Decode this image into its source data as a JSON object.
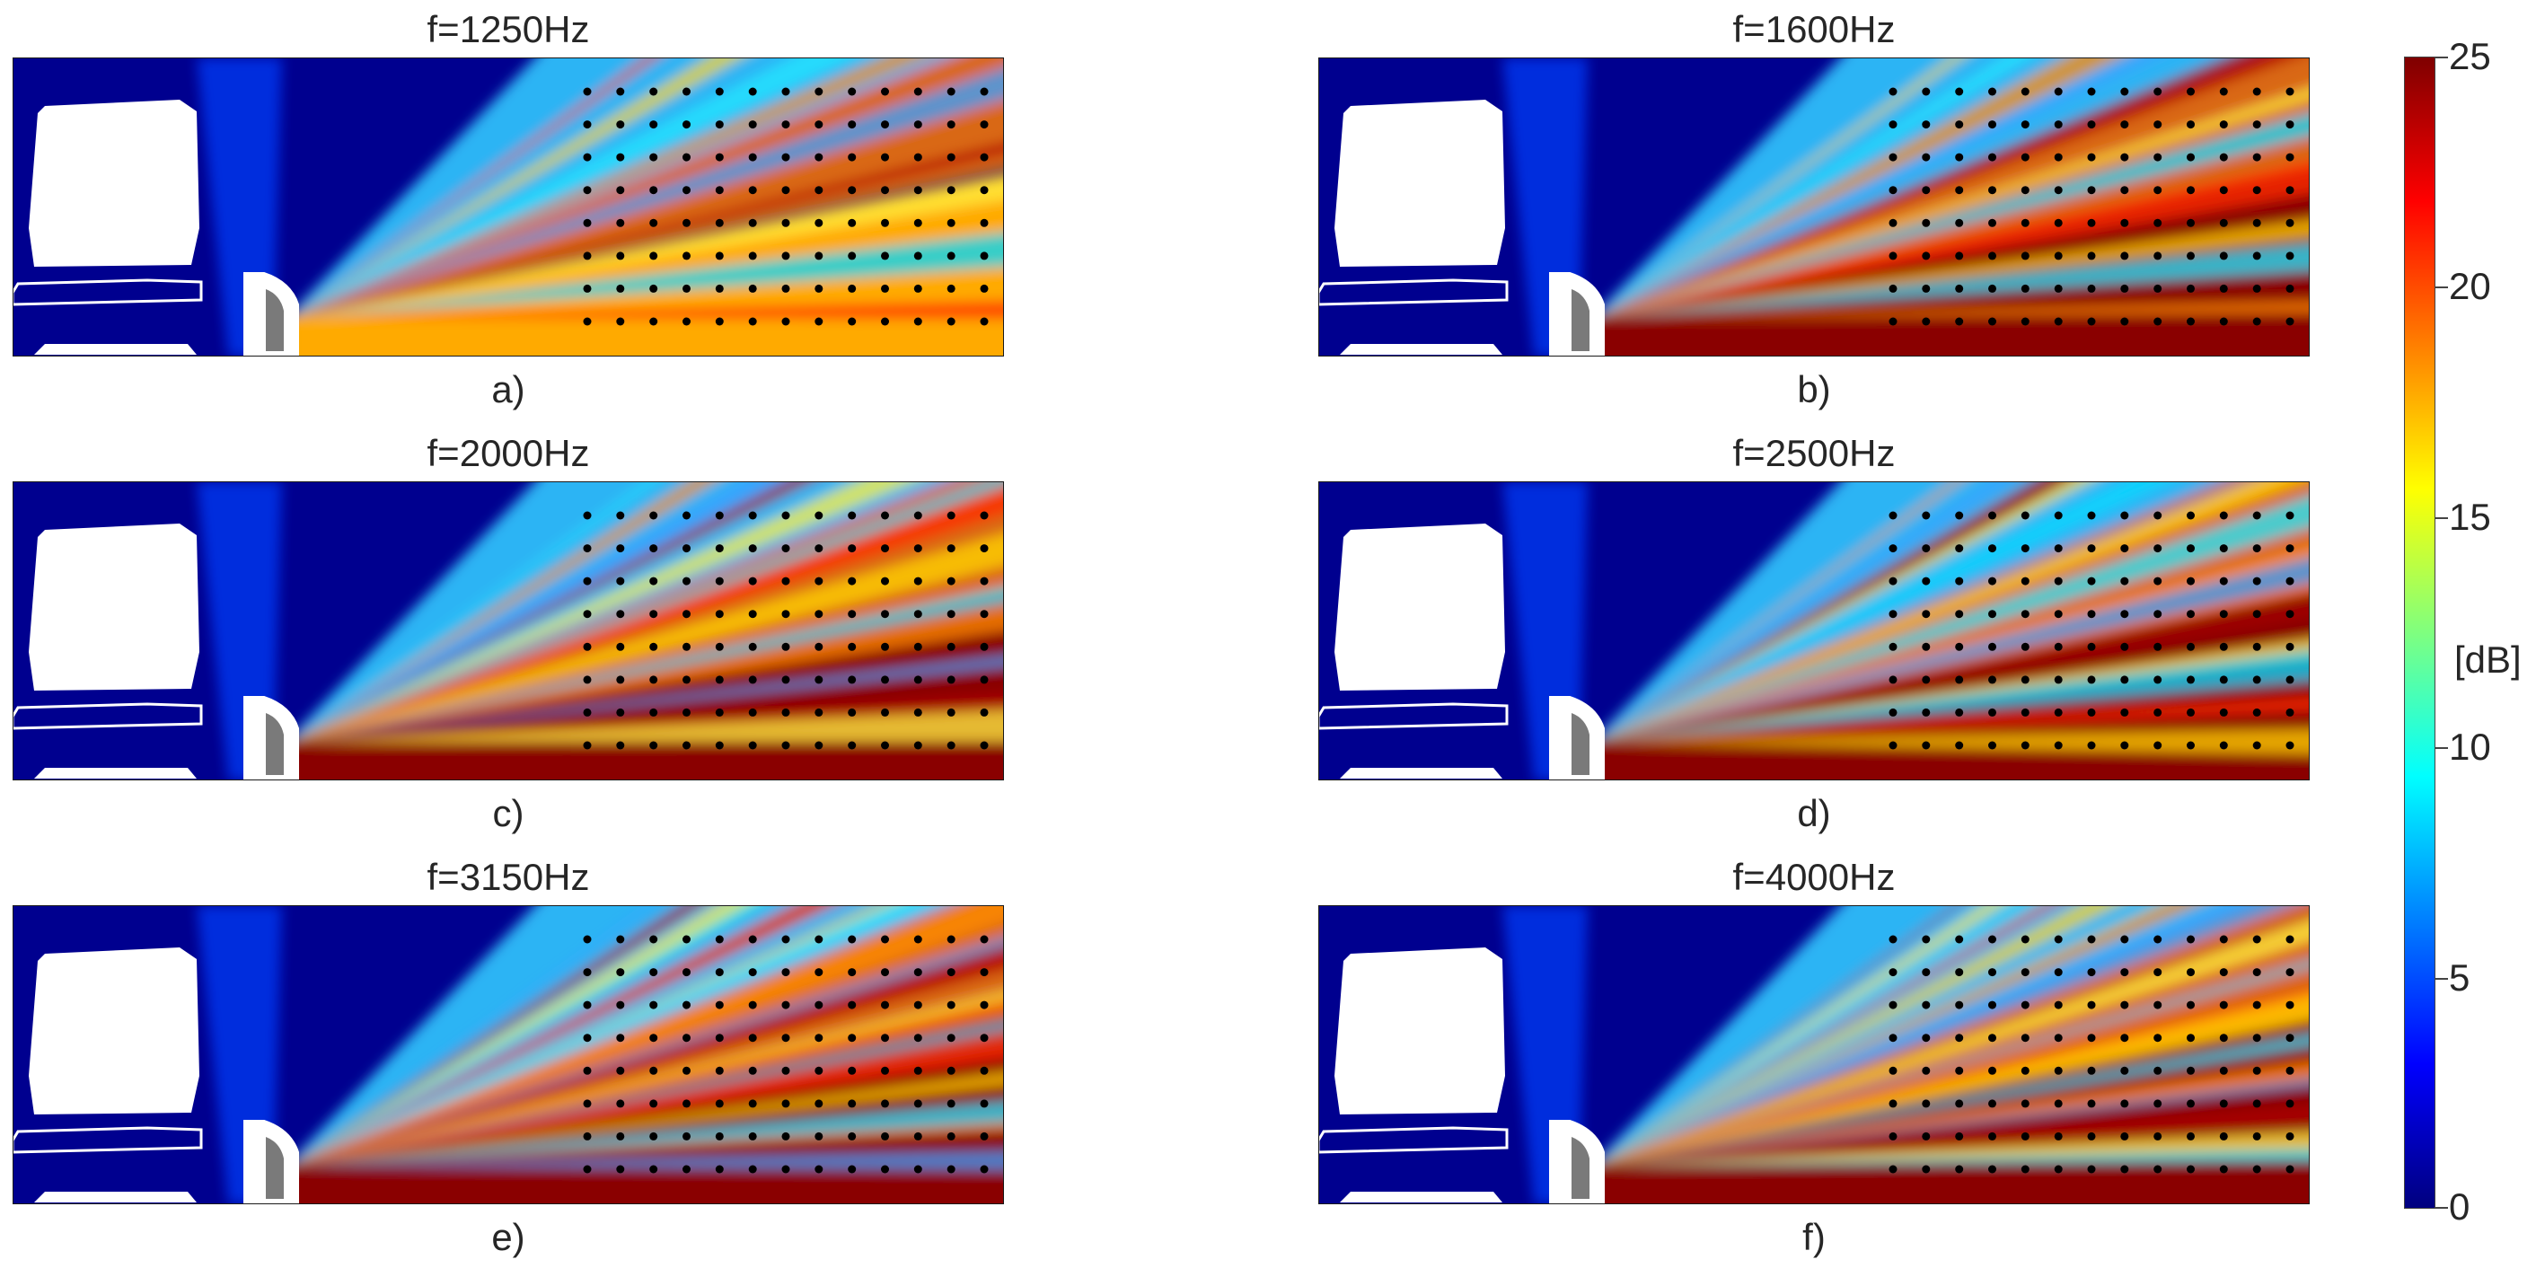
{
  "chart_data": {
    "type": "heatmap",
    "colorbar": {
      "label": "[dB]",
      "min": 0,
      "max": 25,
      "ticks": [
        "0",
        "5",
        "10",
        "15",
        "20",
        "25"
      ],
      "colormap": "jet"
    },
    "panels": [
      {
        "id": "a",
        "title": "f=1250Hz",
        "label": "a)",
        "beam_spread": 0.62
      },
      {
        "id": "b",
        "title": "f=1600Hz",
        "label": "b)",
        "beam_spread": 0.5
      },
      {
        "id": "c",
        "title": "f=2000Hz",
        "label": "c)",
        "beam_spread": 0.44
      },
      {
        "id": "d",
        "title": "f=2500Hz",
        "label": "d)",
        "beam_spread": 0.4
      },
      {
        "id": "e",
        "title": "f=3150Hz",
        "label": "e)",
        "beam_spread": 0.34
      },
      {
        "id": "f",
        "title": "f=4000Hz",
        "label": "f)",
        "beam_spread": 0.3
      }
    ],
    "microphone_grid": {
      "columns": 13,
      "rows": 8
    }
  }
}
